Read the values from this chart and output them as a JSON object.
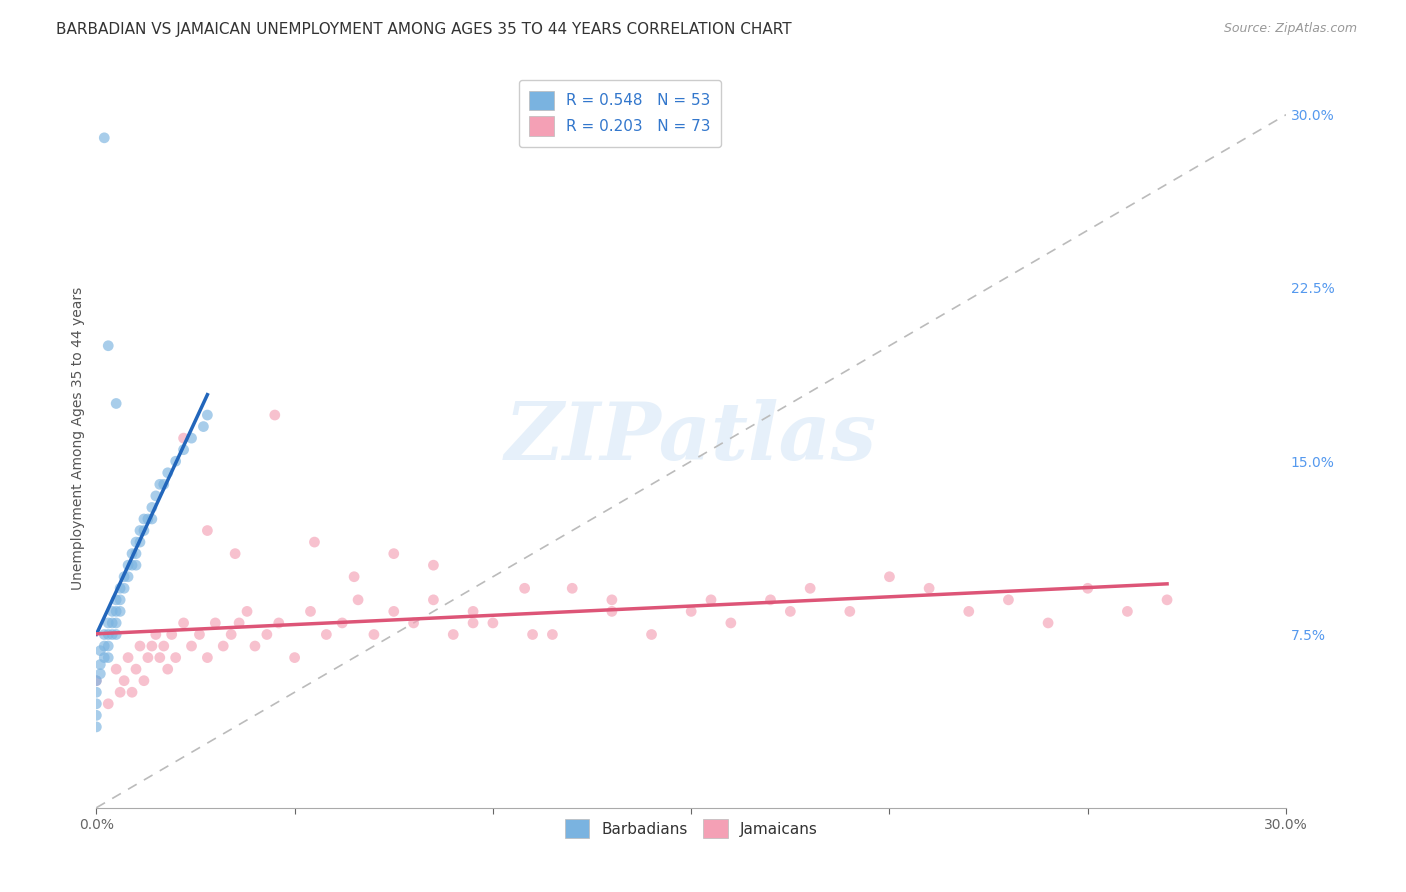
{
  "title": "BARBADIAN VS JAMAICAN UNEMPLOYMENT AMONG AGES 35 TO 44 YEARS CORRELATION CHART",
  "source": "Source: ZipAtlas.com",
  "ylabel": "Unemployment Among Ages 35 to 44 years",
  "xlim": [
    0.0,
    0.3
  ],
  "ylim": [
    0.0,
    0.32
  ],
  "y_tick_vals_right": [
    0.0,
    0.075,
    0.15,
    0.225,
    0.3
  ],
  "y_tick_labels_right": [
    "",
    "7.5%",
    "15.0%",
    "22.5%",
    "30.0%"
  ],
  "barbadian_color": "#7ab3e0",
  "jamaican_color": "#f4a0b5",
  "barbadian_R": 0.548,
  "barbadian_N": 53,
  "jamaican_R": 0.203,
  "jamaican_N": 73,
  "barbadian_scatter_x": [
    0.0,
    0.0,
    0.0,
    0.0,
    0.0,
    0.001,
    0.001,
    0.001,
    0.002,
    0.002,
    0.002,
    0.003,
    0.003,
    0.003,
    0.003,
    0.004,
    0.004,
    0.004,
    0.005,
    0.005,
    0.005,
    0.005,
    0.006,
    0.006,
    0.006,
    0.007,
    0.007,
    0.008,
    0.008,
    0.009,
    0.009,
    0.01,
    0.01,
    0.01,
    0.011,
    0.011,
    0.012,
    0.012,
    0.013,
    0.014,
    0.014,
    0.015,
    0.016,
    0.017,
    0.018,
    0.02,
    0.022,
    0.024,
    0.027,
    0.028,
    0.003,
    0.005,
    0.002
  ],
  "barbadian_scatter_y": [
    0.055,
    0.05,
    0.045,
    0.04,
    0.035,
    0.068,
    0.062,
    0.058,
    0.075,
    0.07,
    0.065,
    0.08,
    0.075,
    0.07,
    0.065,
    0.085,
    0.08,
    0.075,
    0.09,
    0.085,
    0.08,
    0.075,
    0.095,
    0.09,
    0.085,
    0.1,
    0.095,
    0.105,
    0.1,
    0.11,
    0.105,
    0.115,
    0.11,
    0.105,
    0.12,
    0.115,
    0.125,
    0.12,
    0.125,
    0.13,
    0.125,
    0.135,
    0.14,
    0.14,
    0.145,
    0.15,
    0.155,
    0.16,
    0.165,
    0.17,
    0.2,
    0.175,
    0.29
  ],
  "jamaican_scatter_x": [
    0.0,
    0.003,
    0.005,
    0.006,
    0.007,
    0.008,
    0.009,
    0.01,
    0.011,
    0.012,
    0.013,
    0.014,
    0.015,
    0.016,
    0.017,
    0.018,
    0.019,
    0.02,
    0.022,
    0.024,
    0.026,
    0.028,
    0.03,
    0.032,
    0.034,
    0.036,
    0.038,
    0.04,
    0.043,
    0.046,
    0.05,
    0.054,
    0.058,
    0.062,
    0.066,
    0.07,
    0.075,
    0.08,
    0.085,
    0.09,
    0.095,
    0.1,
    0.108,
    0.115,
    0.12,
    0.13,
    0.14,
    0.15,
    0.16,
    0.17,
    0.18,
    0.19,
    0.2,
    0.21,
    0.22,
    0.23,
    0.24,
    0.25,
    0.26,
    0.27,
    0.022,
    0.028,
    0.035,
    0.045,
    0.055,
    0.065,
    0.075,
    0.085,
    0.095,
    0.11,
    0.13,
    0.155,
    0.175
  ],
  "jamaican_scatter_y": [
    0.055,
    0.045,
    0.06,
    0.05,
    0.055,
    0.065,
    0.05,
    0.06,
    0.07,
    0.055,
    0.065,
    0.07,
    0.075,
    0.065,
    0.07,
    0.06,
    0.075,
    0.065,
    0.08,
    0.07,
    0.075,
    0.065,
    0.08,
    0.07,
    0.075,
    0.08,
    0.085,
    0.07,
    0.075,
    0.08,
    0.065,
    0.085,
    0.075,
    0.08,
    0.09,
    0.075,
    0.085,
    0.08,
    0.09,
    0.075,
    0.085,
    0.08,
    0.095,
    0.075,
    0.095,
    0.09,
    0.075,
    0.085,
    0.08,
    0.09,
    0.095,
    0.085,
    0.1,
    0.095,
    0.085,
    0.09,
    0.08,
    0.095,
    0.085,
    0.09,
    0.16,
    0.12,
    0.11,
    0.17,
    0.115,
    0.1,
    0.11,
    0.105,
    0.08,
    0.075,
    0.085,
    0.09,
    0.085
  ],
  "watermark_text": "ZIPatlas",
  "background_color": "#ffffff",
  "grid_color": "#cccccc",
  "title_fontsize": 11,
  "axis_label_fontsize": 10,
  "tick_fontsize": 10,
  "legend_fontsize": 11,
  "scatter_size": 60,
  "scatter_alpha": 0.65,
  "barbadian_line_color": "#2266bb",
  "jamaican_line_color": "#dd5577",
  "diagonal_color": "#bbbbbb"
}
